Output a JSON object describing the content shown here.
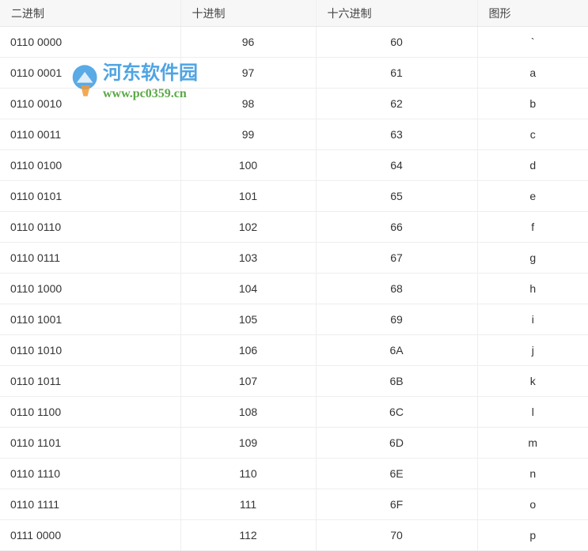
{
  "headers": [
    "二进制",
    "十进制",
    "十六进制",
    "图形"
  ],
  "rows": [
    [
      "0110 0000",
      "96",
      "60",
      "`"
    ],
    [
      "0110 0001",
      "97",
      "61",
      "a"
    ],
    [
      "0110 0010",
      "98",
      "62",
      "b"
    ],
    [
      "0110 0011",
      "99",
      "63",
      "c"
    ],
    [
      "0110 0100",
      "100",
      "64",
      "d"
    ],
    [
      "0110 0101",
      "101",
      "65",
      "e"
    ],
    [
      "0110 0110",
      "102",
      "66",
      "f"
    ],
    [
      "0110 0111",
      "103",
      "67",
      "g"
    ],
    [
      "0110 1000",
      "104",
      "68",
      "h"
    ],
    [
      "0110 1001",
      "105",
      "69",
      "i"
    ],
    [
      "0110 1010",
      "106",
      "6A",
      "j"
    ],
    [
      "0110 1011",
      "107",
      "6B",
      "k"
    ],
    [
      "0110 1100",
      "108",
      "6C",
      "l"
    ],
    [
      "0110 1101",
      "109",
      "6D",
      "m"
    ],
    [
      "0110 1110",
      "110",
      "6E",
      "n"
    ],
    [
      "0110 1111",
      "111",
      "6F",
      "o"
    ],
    [
      "0111 0000",
      "112",
      "70",
      "p"
    ]
  ],
  "watermark": {
    "name": "河东软件园",
    "url": "www.pc0359.cn"
  }
}
